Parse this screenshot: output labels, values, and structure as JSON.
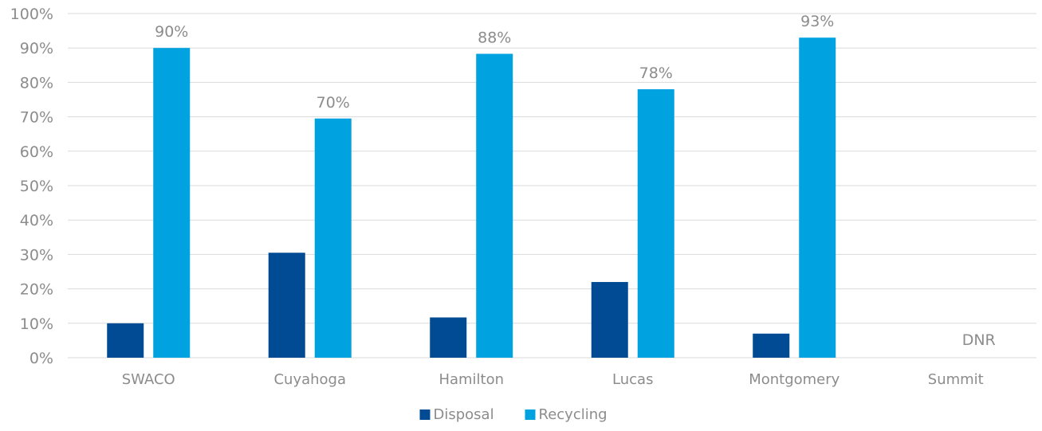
{
  "chart_data": {
    "type": "bar",
    "categories": [
      "SWACO",
      "Cuyahoga",
      "Hamilton",
      "Lucas",
      "Montgomery",
      "Summit"
    ],
    "series": [
      {
        "name": "Disposal",
        "color": "#004b93",
        "values": [
          10,
          30.5,
          11.7,
          22,
          7,
          null
        ]
      },
      {
        "name": "Recycling",
        "color": "#00a2e0",
        "values": [
          90,
          69.5,
          88.3,
          78,
          93,
          null
        ]
      }
    ],
    "data_labels": {
      "Recycling": [
        "90%",
        "70%",
        "88%",
        "78%",
        "93%",
        "DNR"
      ]
    },
    "y_ticks": [
      "0%",
      "10%",
      "20%",
      "30%",
      "40%",
      "50%",
      "60%",
      "70%",
      "80%",
      "90%",
      "100%"
    ],
    "ylim": [
      0,
      100
    ],
    "grid": true,
    "legend_position": "bottom"
  }
}
